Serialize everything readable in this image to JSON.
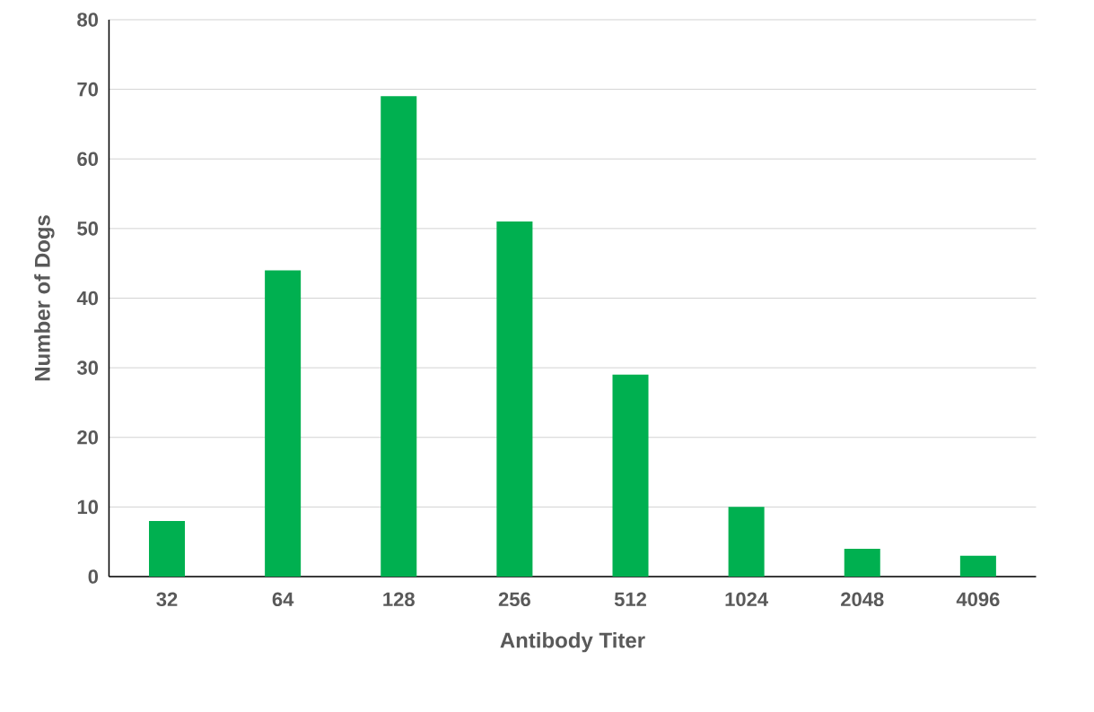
{
  "chart_data": {
    "type": "bar",
    "xlabel": "Antibody Titer",
    "ylabel": "Number of Dogs",
    "categories": [
      "32",
      "64",
      "128",
      "256",
      "512",
      "1024",
      "2048",
      "4096"
    ],
    "values": [
      8,
      44,
      69,
      51,
      29,
      10,
      4,
      3
    ],
    "color": "#00b050",
    "ylim": [
      0,
      80
    ],
    "yticks": [
      0,
      10,
      20,
      30,
      40,
      50,
      60,
      70,
      80
    ],
    "grid": "y"
  }
}
